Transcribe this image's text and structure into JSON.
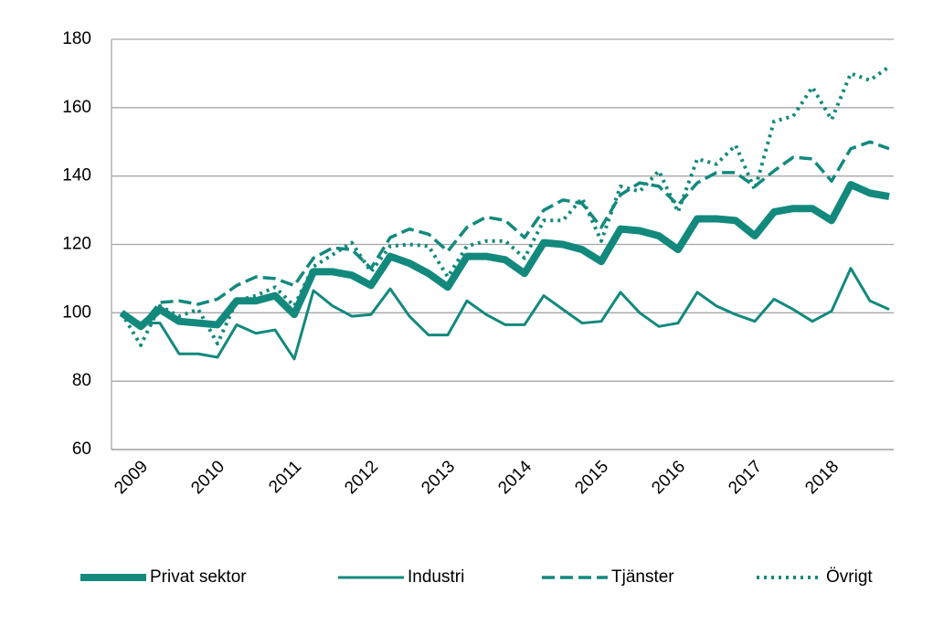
{
  "chart_data": {
    "type": "line",
    "categories": [
      "2009",
      null,
      null,
      null,
      "2010",
      null,
      null,
      null,
      "2011",
      null,
      null,
      null,
      "2012",
      null,
      null,
      null,
      "2013",
      null,
      null,
      null,
      "2014",
      null,
      null,
      null,
      "2015",
      null,
      null,
      null,
      "2016",
      null,
      null,
      null,
      "2017",
      null,
      null,
      null,
      "2018",
      null,
      null,
      null,
      null
    ],
    "ylim": [
      60,
      180
    ],
    "yticks": [
      60,
      80,
      100,
      120,
      140,
      160,
      180
    ],
    "grid": true,
    "legend": "bottom",
    "series": [
      {
        "name": "Privat sektor",
        "color": "#13897d",
        "line_style": "solid",
        "line_width": 8,
        "values": [
          100,
          96,
          101,
          97.5,
          97,
          96.5,
          103.5,
          103.5,
          105,
          99.5,
          112,
          112,
          111,
          108,
          116.5,
          114.5,
          111.5,
          107.5,
          116.5,
          116.5,
          115.5,
          111.5,
          120.5,
          120,
          118.5,
          115,
          124.5,
          124,
          122.5,
          118.5,
          127.5,
          127.5,
          127,
          122.5,
          129.5,
          130.5,
          130.5,
          127,
          137.5,
          135,
          134
        ]
      },
      {
        "name": "Industri",
        "color": "#13897d",
        "line_style": "solid",
        "line_width": 3,
        "values": [
          100,
          97,
          97,
          88,
          88,
          87,
          96.5,
          94,
          95,
          86.5,
          106.5,
          102,
          99,
          99.5,
          107,
          99,
          93.5,
          93.5,
          103.5,
          99.5,
          96.5,
          96.5,
          105,
          101,
          97,
          97.5,
          106,
          100,
          96,
          97,
          106,
          102,
          99.5,
          97.5,
          104,
          101,
          97.5,
          100.5,
          113,
          103.5,
          101
        ]
      },
      {
        "name": "Tjänster",
        "color": "#13897d",
        "line_style": "dashed",
        "line_width": 3.5,
        "values": [
          100,
          96,
          103,
          103.5,
          102.5,
          104,
          108,
          110.5,
          110,
          108,
          116,
          119,
          118.5,
          113,
          122,
          124.5,
          123,
          118,
          125,
          128,
          127,
          122,
          130,
          133,
          132,
          125,
          134.5,
          138,
          137,
          131.5,
          138,
          141,
          141,
          137,
          141.5,
          145.5,
          145,
          138.5,
          148,
          150,
          148
        ]
      },
      {
        "name": "Övrigt",
        "color": "#13897d",
        "line_style": "dotted",
        "line_width": 4,
        "values": [
          100,
          90.5,
          102,
          99,
          101,
          91,
          103.5,
          105,
          107.5,
          102,
          113.5,
          117,
          120.5,
          112,
          119.5,
          120,
          119.5,
          110.5,
          119.5,
          121,
          121,
          116,
          127,
          127,
          133.5,
          121,
          137,
          135.5,
          141.5,
          129.5,
          145,
          143.5,
          149,
          136,
          156,
          157.5,
          166,
          156.5,
          170,
          168,
          172
        ]
      }
    ]
  }
}
